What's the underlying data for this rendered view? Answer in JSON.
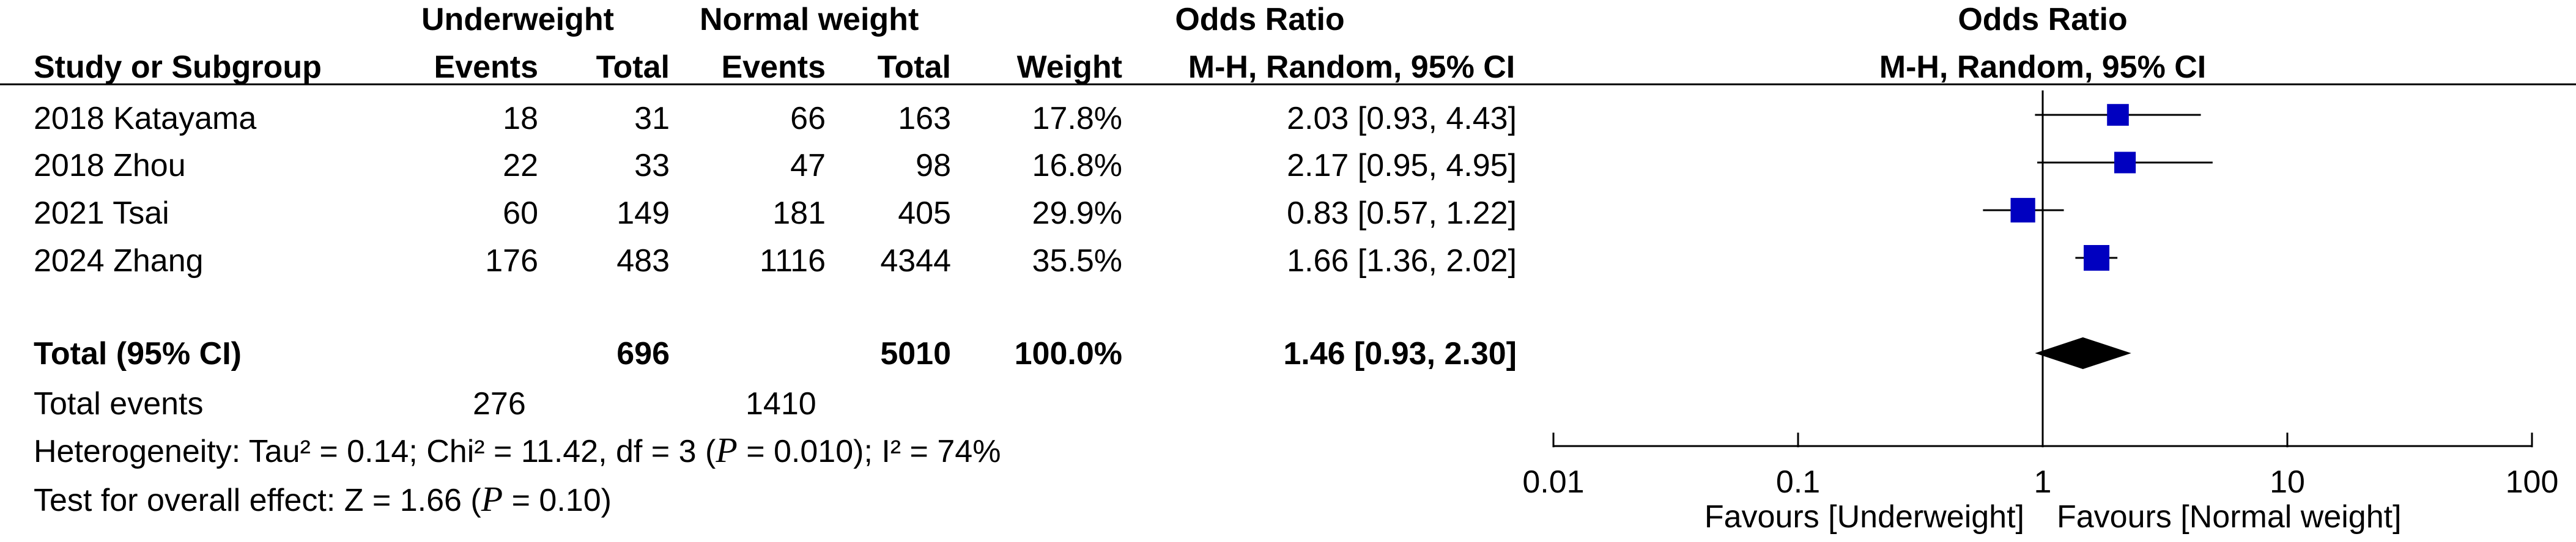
{
  "headers": {
    "group1": "Underweight",
    "group2": "Normal weight",
    "or_title": "Odds Ratio",
    "study_col": "Study or Subgroup",
    "events": "Events",
    "total": "Total",
    "weight": "Weight",
    "or_method": "M-H, Random, 95% CI",
    "plot_title": "Odds Ratio",
    "plot_method": "M-H, Random, 95% CI"
  },
  "total_row": {
    "label": "Total (95% CI)",
    "g1_total": "696",
    "g2_total": "5010",
    "weight": "100.0%",
    "ci": "1.46 [0.93, 2.30]"
  },
  "events_row": {
    "label": "Total events",
    "g1": "276",
    "g2": "1410"
  },
  "heterogeneity": {
    "prefix": "Heterogeneity: Tau² = 0.14; Chi² = 11.42, df = 3 (",
    "p_letter": "P",
    "p_value": " = 0.010); I² = 74%"
  },
  "overall_effect": {
    "prefix": "Test for overall effect: Z = 1.66 (",
    "p_letter": "P",
    "p_value": " = 0.10)"
  },
  "favours": {
    "left": "Favours [Underweight]",
    "right": "Favours [Normal weight]"
  },
  "colors": {
    "square": "#0000c0",
    "diamond": "#000000",
    "line": "#000000"
  },
  "chart_data": {
    "type": "scatter",
    "title": "Odds Ratio",
    "subtitle": "M-H, Random, 95% CI",
    "x_scale": "log",
    "xlim": [
      0.01,
      100
    ],
    "x_ticks": [
      "0.01",
      "0.1",
      "1",
      "10",
      "100"
    ],
    "reference_line": 1,
    "studies": [
      {
        "name": "2018 Katayama",
        "g1_events": "18",
        "g1_total": "31",
        "g2_events": "66",
        "g2_total": "163",
        "weight": "17.8%",
        "weight_value": 17.8,
        "ci_text": "2.03 [0.93, 4.43]",
        "or": 2.03,
        "lo": 0.93,
        "hi": 4.43
      },
      {
        "name": "2018 Zhou",
        "g1_events": "22",
        "g1_total": "33",
        "g2_events": "47",
        "g2_total": "98",
        "weight": "16.8%",
        "weight_value": 16.8,
        "ci_text": "2.17 [0.95, 4.95]",
        "or": 2.17,
        "lo": 0.95,
        "hi": 4.95
      },
      {
        "name": "2021 Tsai",
        "g1_events": "60",
        "g1_total": "149",
        "g2_events": "181",
        "g2_total": "405",
        "weight": "29.9%",
        "weight_value": 29.9,
        "ci_text": "0.83 [0.57, 1.22]",
        "or": 0.83,
        "lo": 0.57,
        "hi": 1.22
      },
      {
        "name": "2024 Zhang",
        "g1_events": "176",
        "g1_total": "483",
        "g2_events": "1116",
        "g2_total": "4344",
        "weight": "35.5%",
        "weight_value": 35.5,
        "ci_text": "1.66 [1.36, 2.02]",
        "or": 1.66,
        "lo": 1.36,
        "hi": 2.02
      }
    ],
    "pooled": {
      "or": 1.46,
      "lo": 0.93,
      "hi": 2.3
    }
  }
}
